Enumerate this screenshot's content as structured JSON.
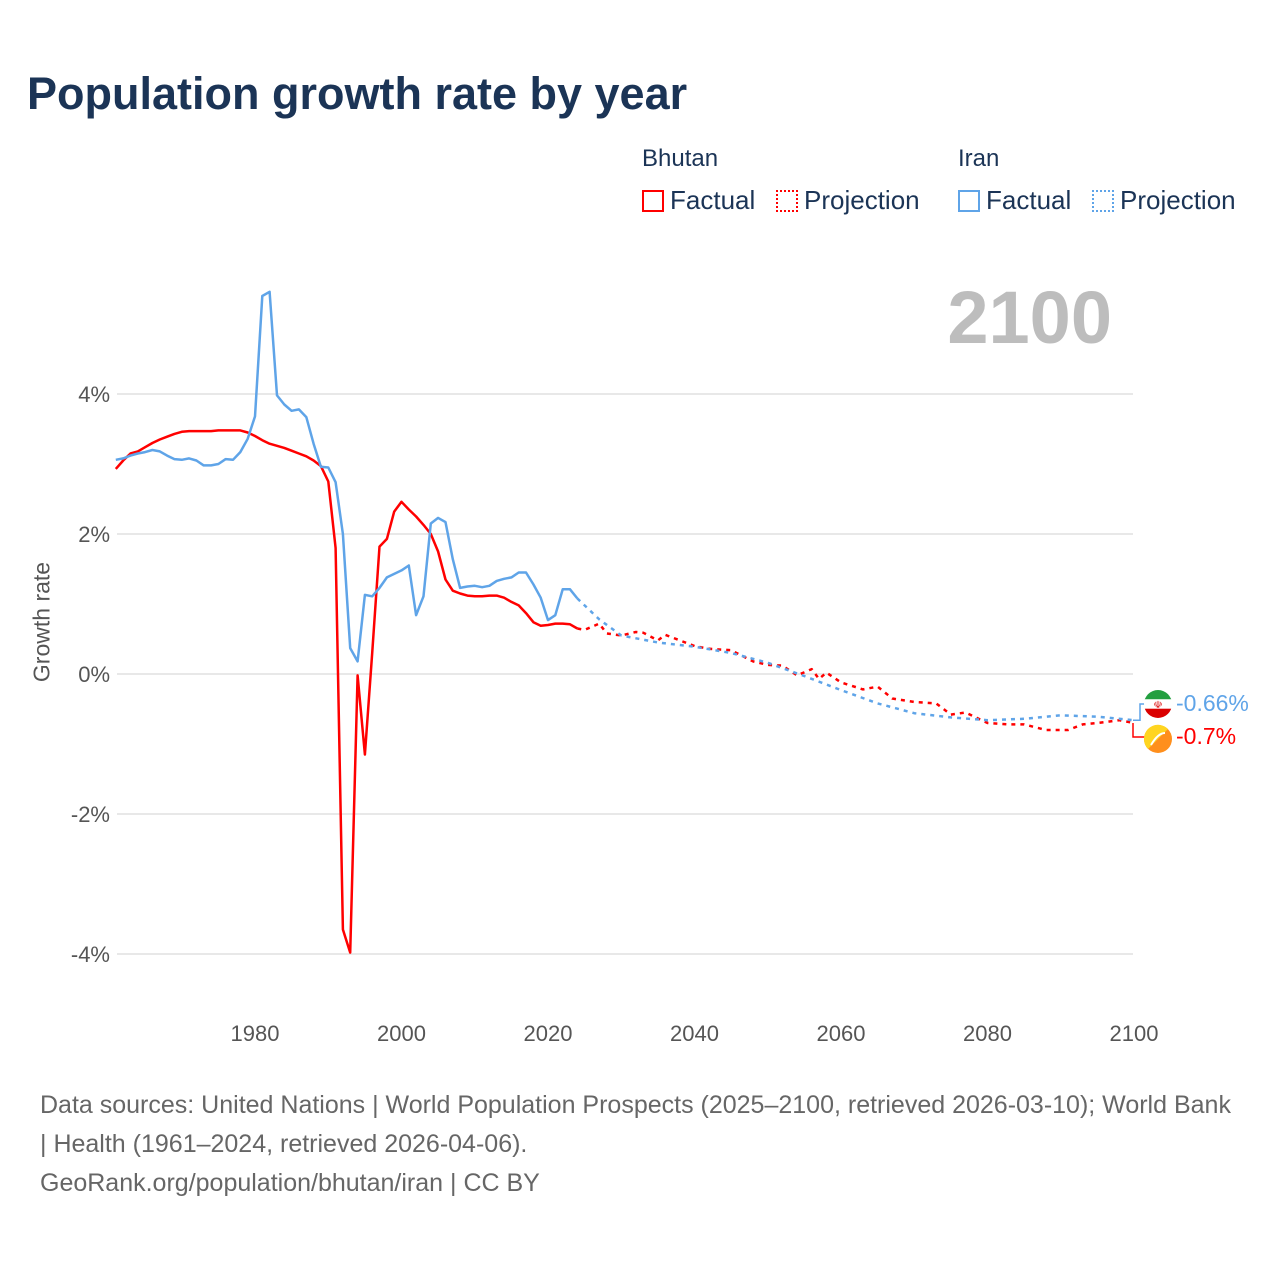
{
  "title": "Population growth rate by year",
  "legend": {
    "groups": [
      {
        "name": "Bhutan",
        "color": "#ff0000",
        "items": [
          "Factual",
          "Projection"
        ]
      },
      {
        "name": "Iran",
        "color": "#5fa4e8",
        "items": [
          "Factual",
          "Projection"
        ]
      }
    ]
  },
  "current_year": "2100",
  "footer": {
    "sources": "Data sources: United Nations | World Population Prospects (2025–2100, retrieved 2026-03-10); World Bank | Health (1961–2024, retrieved 2026-04-06).",
    "credit": "GeoRank.org/population/bhutan/iran | CC BY"
  },
  "chart_data": {
    "type": "line",
    "title": "Population growth rate by year",
    "ylabel": "Growth rate",
    "xlabel": "",
    "xlim": [
      1961,
      2100
    ],
    "ylim": [
      -4.6,
      5.6
    ],
    "yticks": [
      4,
      2,
      0,
      -2,
      -4
    ],
    "ytick_labels": [
      "4%",
      "2%",
      "0%",
      "-2%",
      "-4%"
    ],
    "xticks": [
      1980,
      2000,
      2020,
      2040,
      2060,
      2080,
      2100
    ],
    "xtick_labels": [
      "1980",
      "2000",
      "2020",
      "2040",
      "2060",
      "2080",
      "2100"
    ],
    "grid": true,
    "legend_position": "top-right",
    "series": [
      {
        "name": "Bhutan",
        "kind": "Factual",
        "color": "#ff0000",
        "start": 1961,
        "values": [
          2.93,
          3.05,
          3.15,
          3.18,
          3.24,
          3.3,
          3.35,
          3.39,
          3.43,
          3.46,
          3.47,
          3.47,
          3.47,
          3.47,
          3.48,
          3.48,
          3.48,
          3.48,
          3.45,
          3.4,
          3.34,
          3.29,
          3.26,
          3.23,
          3.19,
          3.15,
          3.11,
          3.05,
          2.97,
          2.75,
          1.8,
          -3.65,
          -3.98,
          -0.02,
          -1.15,
          0.3,
          1.82,
          1.93,
          2.32,
          2.46,
          2.35,
          2.25,
          2.13,
          2.0,
          1.75,
          1.35,
          1.19,
          1.15,
          1.12,
          1.11,
          1.11,
          1.12,
          1.12,
          1.09,
          1.03,
          0.98,
          0.87,
          0.74,
          0.69,
          0.7,
          0.72,
          0.72,
          0.71,
          0.65
        ]
      },
      {
        "name": "Bhutan",
        "kind": "Projection",
        "color": "#ff0000",
        "points": [
          [
            2024,
            0.65
          ],
          [
            2025,
            0.63
          ],
          [
            2027,
            0.72
          ],
          [
            2028,
            0.58
          ],
          [
            2030,
            0.55
          ],
          [
            2032,
            0.6
          ],
          [
            2033,
            0.59
          ],
          [
            2035,
            0.48
          ],
          [
            2036,
            0.56
          ],
          [
            2040,
            0.4
          ],
          [
            2042,
            0.36
          ],
          [
            2045,
            0.34
          ],
          [
            2048,
            0.18
          ],
          [
            2050,
            0.13
          ],
          [
            2052,
            0.12
          ],
          [
            2054,
            -0.02
          ],
          [
            2056,
            0.07
          ],
          [
            2057,
            -0.07
          ],
          [
            2058,
            0.02
          ],
          [
            2060,
            -0.12
          ],
          [
            2063,
            -0.22
          ],
          [
            2065,
            -0.18
          ],
          [
            2067,
            -0.35
          ],
          [
            2070,
            -0.4
          ],
          [
            2073,
            -0.42
          ],
          [
            2075,
            -0.58
          ],
          [
            2077,
            -0.55
          ],
          [
            2080,
            -0.7
          ],
          [
            2083,
            -0.72
          ],
          [
            2085,
            -0.72
          ],
          [
            2088,
            -0.8
          ],
          [
            2091,
            -0.8
          ],
          [
            2093,
            -0.72
          ],
          [
            2095,
            -0.7
          ],
          [
            2098,
            -0.66
          ],
          [
            2100,
            -0.7
          ]
        ]
      },
      {
        "name": "Iran",
        "kind": "Factual",
        "color": "#5fa4e8",
        "start": 1961,
        "values": [
          3.06,
          3.08,
          3.12,
          3.15,
          3.17,
          3.2,
          3.18,
          3.12,
          3.07,
          3.06,
          3.08,
          3.05,
          2.98,
          2.98,
          3.0,
          3.07,
          3.06,
          3.17,
          3.36,
          3.68,
          5.4,
          5.46,
          3.98,
          3.85,
          3.76,
          3.78,
          3.67,
          3.29,
          2.96,
          2.95,
          2.74,
          2.0,
          0.37,
          0.18,
          1.13,
          1.11,
          1.23,
          1.38,
          1.43,
          1.48,
          1.55,
          0.84,
          1.11,
          2.15,
          2.23,
          2.17,
          1.64,
          1.23,
          1.25,
          1.26,
          1.24,
          1.26,
          1.33,
          1.36,
          1.38,
          1.45,
          1.45,
          1.28,
          1.09,
          0.77,
          0.84,
          1.21,
          1.21,
          1.08
        ]
      },
      {
        "name": "Iran",
        "kind": "Projection",
        "color": "#5fa4e8",
        "points": [
          [
            2024,
            1.08
          ],
          [
            2025,
            0.98
          ],
          [
            2027,
            0.78
          ],
          [
            2030,
            0.55
          ],
          [
            2035,
            0.45
          ],
          [
            2040,
            0.39
          ],
          [
            2045,
            0.3
          ],
          [
            2050,
            0.16
          ],
          [
            2055,
            -0.03
          ],
          [
            2060,
            -0.23
          ],
          [
            2065,
            -0.42
          ],
          [
            2070,
            -0.56
          ],
          [
            2075,
            -0.62
          ],
          [
            2080,
            -0.66
          ],
          [
            2085,
            -0.64
          ],
          [
            2090,
            -0.59
          ],
          [
            2095,
            -0.61
          ],
          [
            2100,
            -0.66
          ]
        ]
      }
    ],
    "end_labels": [
      {
        "country": "Iran",
        "text": "-0.66%",
        "color": "#5fa4e8",
        "flag": "iran-flag"
      },
      {
        "country": "Bhutan",
        "text": "-0.7%",
        "color": "#ff0000",
        "flag": "bhutan-flag"
      }
    ]
  }
}
